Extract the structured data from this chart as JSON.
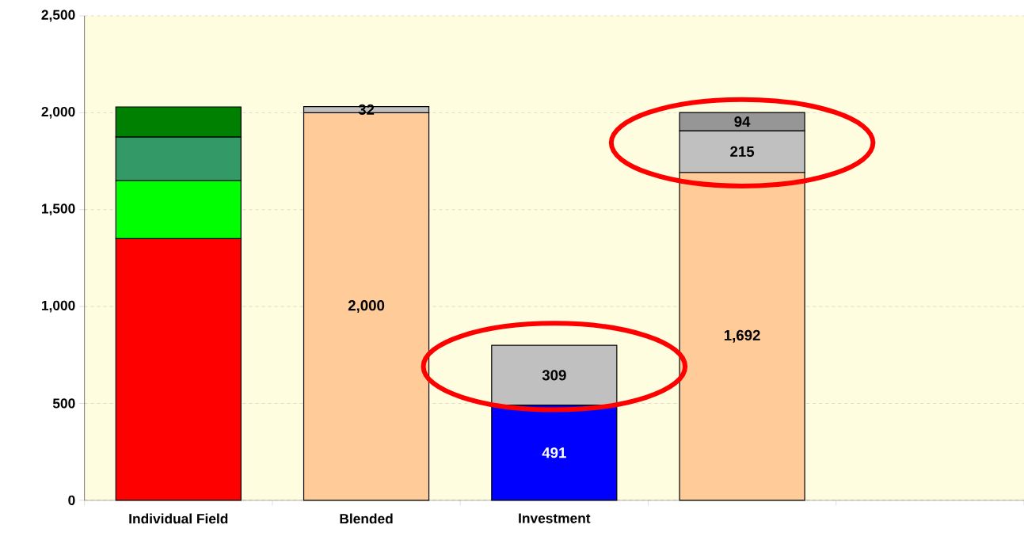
{
  "chart_data": {
    "type": "bar",
    "stacked": true,
    "categories": [
      "Individual Field",
      "Blended",
      "Investment",
      null,
      null
    ],
    "series": [
      {
        "color": "#ff0000",
        "values": [
          1350,
          null,
          null,
          null,
          null
        ]
      },
      {
        "color": "#ffcc99",
        "values": [
          null,
          2000,
          null,
          1692,
          null
        ],
        "value_labels": [
          null,
          "2,000",
          null,
          "1,692",
          null
        ]
      },
      {
        "color": "#0000ff",
        "values": [
          null,
          null,
          491,
          null,
          null
        ],
        "value_labels": [
          null,
          null,
          "491",
          null,
          null
        ]
      },
      {
        "color": "#00ff00",
        "values": [
          300,
          null,
          null,
          null,
          null
        ]
      },
      {
        "color": "#339966",
        "values": [
          225,
          null,
          null,
          null,
          null
        ]
      },
      {
        "color": "#c0c0c0",
        "values": [
          null,
          32,
          309,
          215,
          null
        ],
        "value_labels": [
          null,
          "32",
          "309",
          "215",
          null
        ]
      },
      {
        "color": "#008000",
        "values": [
          155,
          null,
          null,
          null,
          null
        ]
      },
      {
        "color": "#969696",
        "values": [
          null,
          null,
          null,
          94,
          null
        ],
        "value_labels": [
          null,
          null,
          null,
          "94",
          null
        ]
      }
    ],
    "ylim": [
      0,
      2500
    ],
    "yticks": [
      0,
      500,
      {
        "value": 1000,
        "label": "1,000"
      },
      {
        "value": 1500,
        "label": "1,500"
      },
      {
        "value": 2000,
        "label": "2,000"
      },
      {
        "value": 2500,
        "label": "2,500"
      }
    ],
    "grid": "y"
  }
}
